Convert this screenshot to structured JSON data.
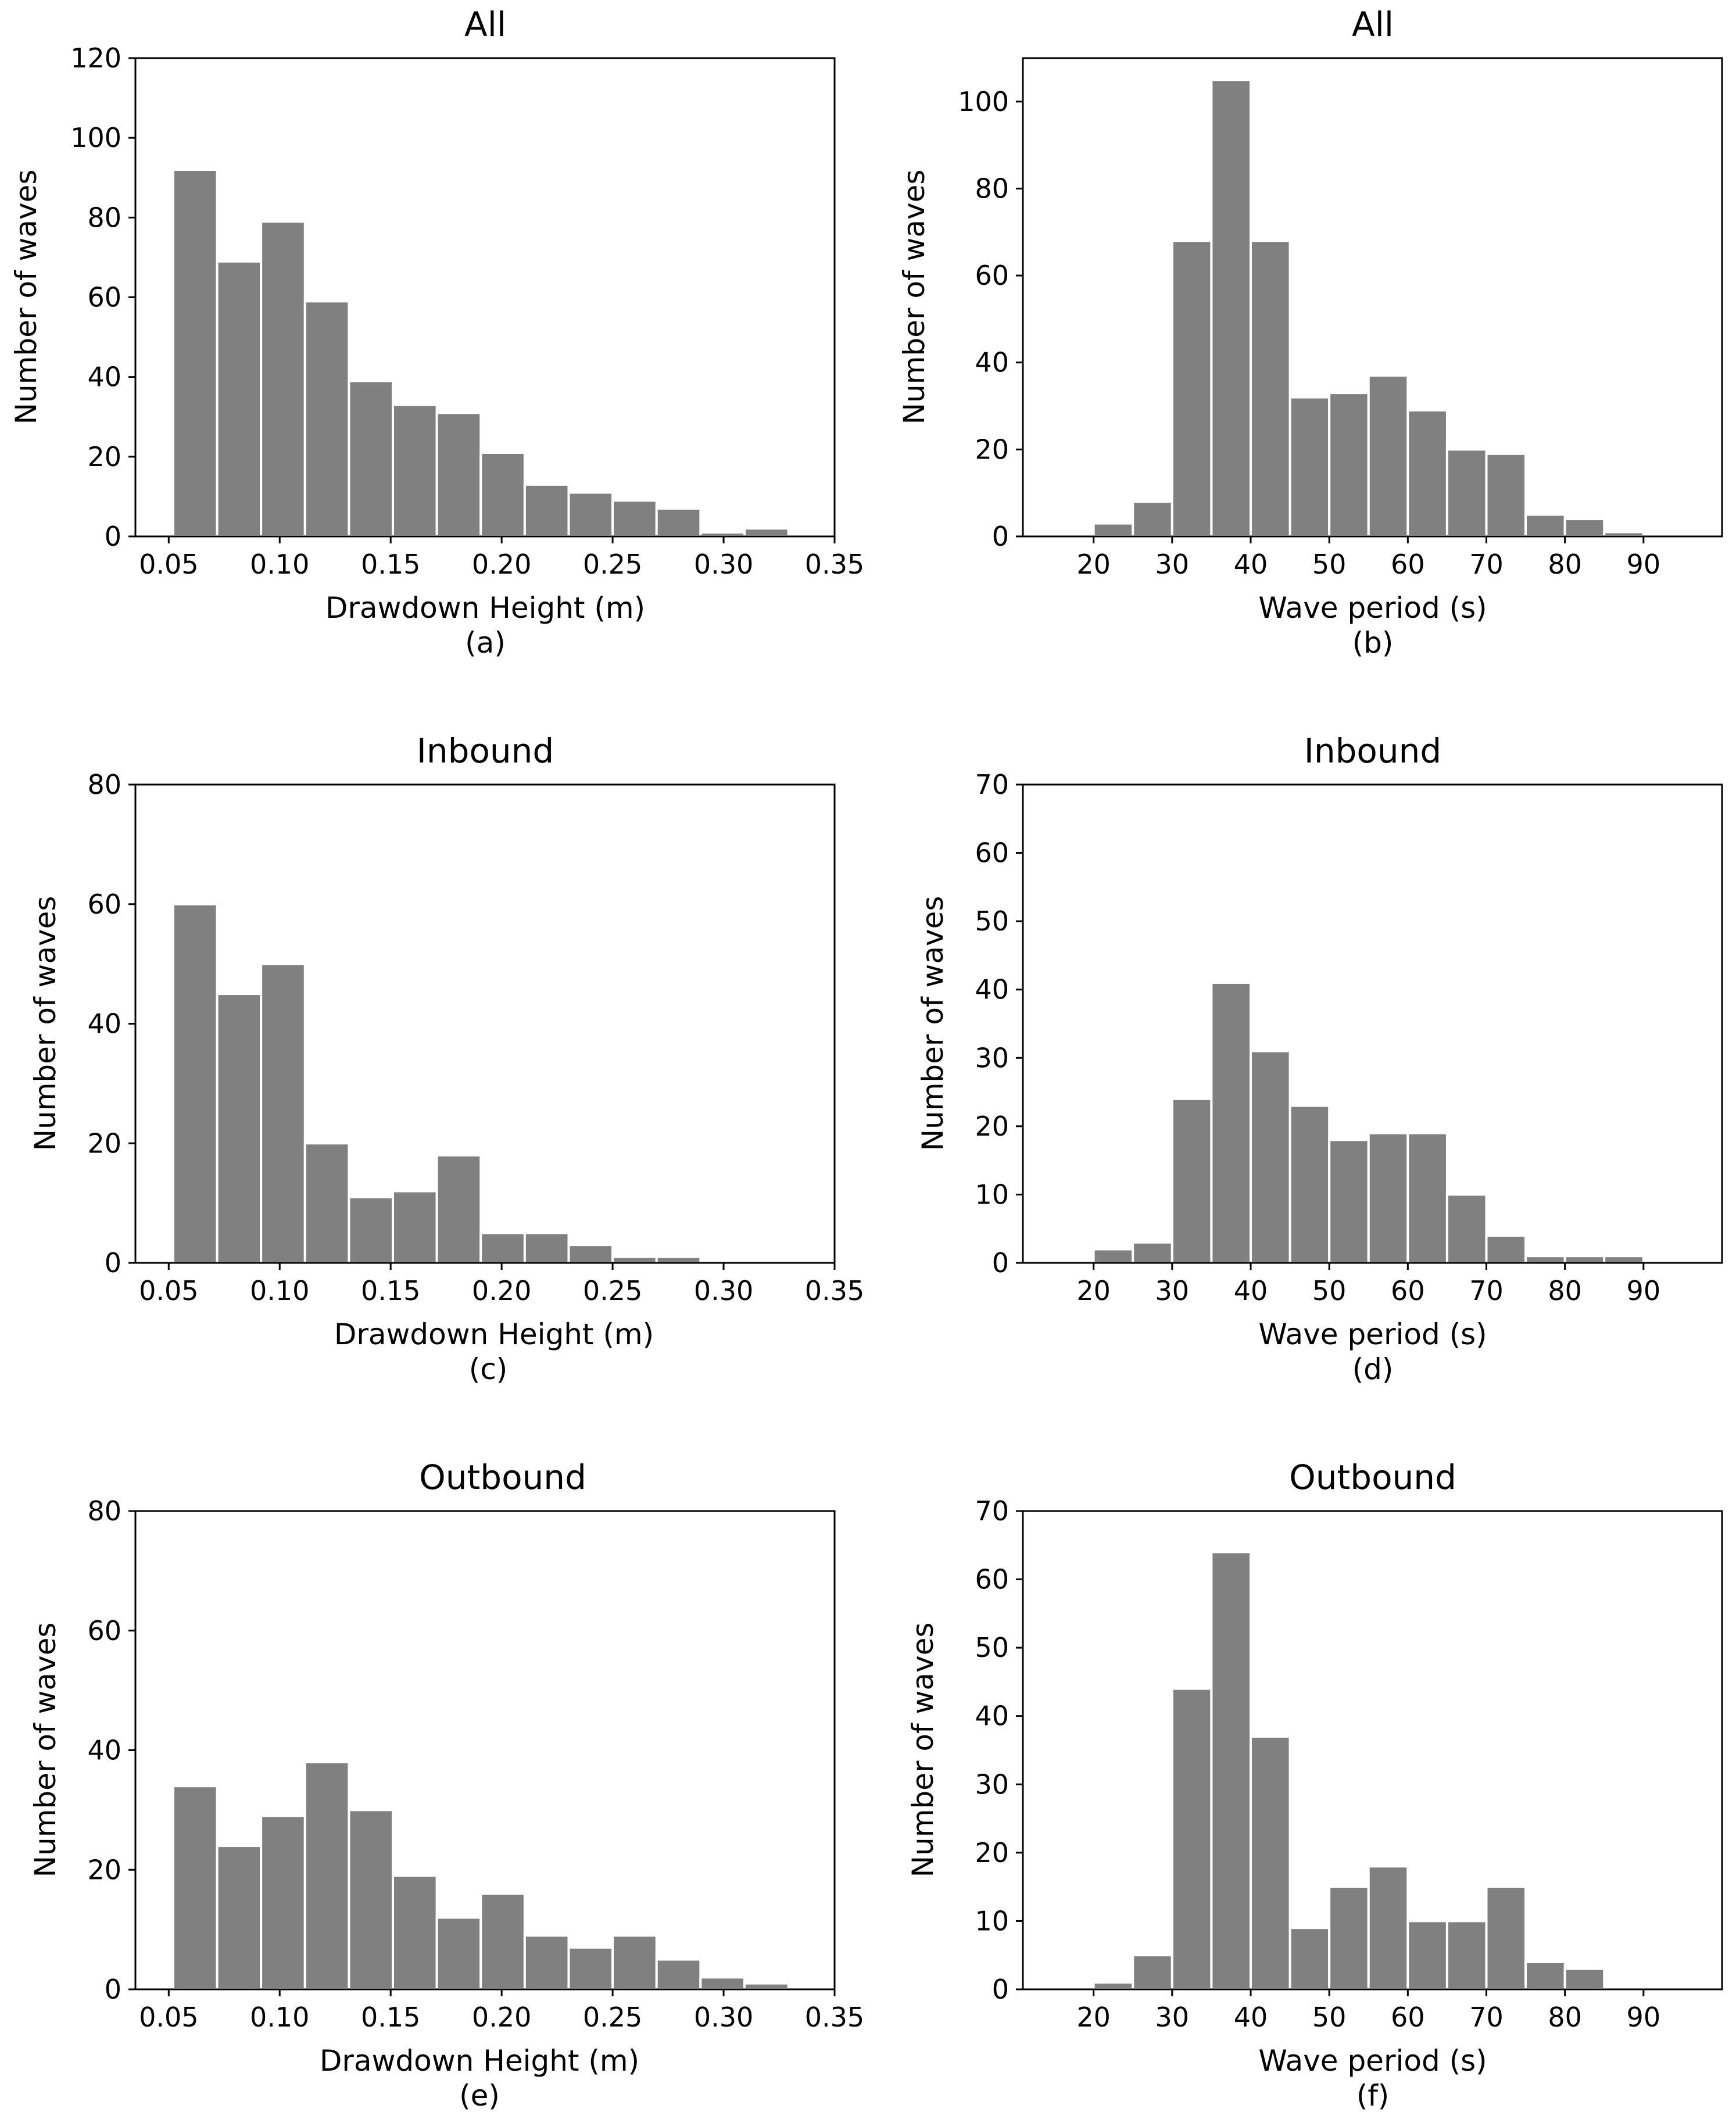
{
  "colors": {
    "bar": "#808080",
    "bar_edge": "#ffffff",
    "axes": "#000000",
    "background": "#ffffff"
  },
  "chart_data": [
    {
      "id": "a",
      "type": "bar",
      "panel_label": "(a)",
      "title": "All",
      "xlabel": "Drawdown Height (m)",
      "ylabel": "Number of waves",
      "xlim": [
        0.035,
        0.35
      ],
      "ylim": [
        0,
        120
      ],
      "xticks": [
        0.05,
        0.1,
        0.15,
        0.2,
        0.25,
        0.3,
        0.35
      ],
      "xtick_labels": [
        "0.05",
        "0.10",
        "0.15",
        "0.20",
        "0.25",
        "0.30",
        "0.35"
      ],
      "yticks": [
        0,
        20,
        40,
        60,
        80,
        100,
        120
      ],
      "ytick_labels": [
        "0",
        "20",
        "40",
        "60",
        "80",
        "100",
        "120"
      ],
      "bin_edges": [
        0.052,
        0.0718,
        0.0916,
        0.1114,
        0.1312,
        0.151,
        0.1708,
        0.1906,
        0.2104,
        0.2302,
        0.25,
        0.2698,
        0.2896,
        0.3094,
        0.3292
      ],
      "values": [
        92,
        69,
        79,
        59,
        39,
        33,
        31,
        21,
        13,
        11,
        9,
        7,
        1,
        2
      ]
    },
    {
      "id": "b",
      "type": "bar",
      "panel_label": "(b)",
      "title": "All",
      "xlabel": "Wave period (s)",
      "ylabel": "Number of waves",
      "xlim": [
        11,
        100
      ],
      "ylim": [
        0,
        110
      ],
      "xticks": [
        20,
        30,
        40,
        50,
        60,
        70,
        80,
        90
      ],
      "xtick_labels": [
        "20",
        "30",
        "40",
        "50",
        "60",
        "70",
        "80",
        "90"
      ],
      "yticks": [
        0,
        20,
        40,
        60,
        80,
        100
      ],
      "ytick_labels": [
        "0",
        "20",
        "40",
        "60",
        "80",
        "100"
      ],
      "bin_edges": [
        15,
        20,
        25,
        30,
        35,
        40,
        45,
        50,
        55,
        60,
        65,
        70,
        75,
        80,
        85,
        90,
        95
      ],
      "values": [
        0,
        3,
        8,
        68,
        105,
        68,
        32,
        33,
        37,
        29,
        20,
        19,
        5,
        4,
        1,
        0
      ]
    },
    {
      "id": "c",
      "type": "bar",
      "panel_label": "(c)",
      "title": "Inbound",
      "xlabel": "Drawdown Height (m)",
      "ylabel": "Number of waves",
      "xlim": [
        0.035,
        0.35
      ],
      "ylim": [
        0,
        80
      ],
      "xticks": [
        0.05,
        0.1,
        0.15,
        0.2,
        0.25,
        0.3,
        0.35
      ],
      "xtick_labels": [
        "0.05",
        "0.10",
        "0.15",
        "0.20",
        "0.25",
        "0.30",
        "0.35"
      ],
      "yticks": [
        0,
        20,
        40,
        60,
        80
      ],
      "ytick_labels": [
        "0",
        "20",
        "40",
        "60",
        "80"
      ],
      "bin_edges": [
        0.052,
        0.0718,
        0.0916,
        0.1114,
        0.1312,
        0.151,
        0.1708,
        0.1906,
        0.2104,
        0.2302,
        0.25,
        0.2698,
        0.2896,
        0.3094,
        0.3292
      ],
      "values": [
        60,
        45,
        50,
        20,
        11,
        12,
        18,
        5,
        5,
        3,
        1,
        1,
        0,
        0
      ]
    },
    {
      "id": "d",
      "type": "bar",
      "panel_label": "(d)",
      "title": "Inbound",
      "xlabel": "Wave period (s)",
      "ylabel": "Number of waves",
      "xlim": [
        11,
        100
      ],
      "ylim": [
        0,
        70
      ],
      "xticks": [
        20,
        30,
        40,
        50,
        60,
        70,
        80,
        90
      ],
      "xtick_labels": [
        "20",
        "30",
        "40",
        "50",
        "60",
        "70",
        "80",
        "90"
      ],
      "yticks": [
        0,
        10,
        20,
        30,
        40,
        50,
        60,
        70
      ],
      "ytick_labels": [
        "0",
        "10",
        "20",
        "30",
        "40",
        "50",
        "60",
        "70"
      ],
      "bin_edges": [
        15,
        20,
        25,
        30,
        35,
        40,
        45,
        50,
        55,
        60,
        65,
        70,
        75,
        80,
        85,
        90,
        95
      ],
      "values": [
        0,
        2,
        3,
        24,
        41,
        31,
        23,
        18,
        19,
        19,
        10,
        4,
        1,
        1,
        1,
        0
      ]
    },
    {
      "id": "e",
      "type": "bar",
      "panel_label": "(e)",
      "title": "Outbound",
      "xlabel": "Drawdown Height (m)",
      "ylabel": "Number of waves",
      "xlim": [
        0.035,
        0.35
      ],
      "ylim": [
        0,
        80
      ],
      "xticks": [
        0.05,
        0.1,
        0.15,
        0.2,
        0.25,
        0.3,
        0.35
      ],
      "xtick_labels": [
        "0.05",
        "0.10",
        "0.15",
        "0.20",
        "0.25",
        "0.30",
        "0.35"
      ],
      "yticks": [
        0,
        20,
        40,
        60,
        80
      ],
      "ytick_labels": [
        "0",
        "20",
        "40",
        "60",
        "80"
      ],
      "bin_edges": [
        0.052,
        0.0718,
        0.0916,
        0.1114,
        0.1312,
        0.151,
        0.1708,
        0.1906,
        0.2104,
        0.2302,
        0.25,
        0.2698,
        0.2896,
        0.3094,
        0.3292
      ],
      "values": [
        34,
        24,
        29,
        38,
        30,
        19,
        12,
        16,
        9,
        7,
        9,
        5,
        2,
        1
      ]
    },
    {
      "id": "f",
      "type": "bar",
      "panel_label": "(f)",
      "title": "Outbound",
      "xlabel": "Wave period (s)",
      "ylabel": "Number of waves",
      "xlim": [
        11,
        100
      ],
      "ylim": [
        0,
        70
      ],
      "xticks": [
        20,
        30,
        40,
        50,
        60,
        70,
        80,
        90
      ],
      "xtick_labels": [
        "20",
        "30",
        "40",
        "50",
        "60",
        "70",
        "80",
        "90"
      ],
      "yticks": [
        0,
        10,
        20,
        30,
        40,
        50,
        60,
        70
      ],
      "ytick_labels": [
        "0",
        "10",
        "20",
        "30",
        "40",
        "50",
        "60",
        "70"
      ],
      "bin_edges": [
        15,
        20,
        25,
        30,
        35,
        40,
        45,
        50,
        55,
        60,
        65,
        70,
        75,
        80,
        85,
        90,
        95
      ],
      "values": [
        0,
        1,
        5,
        44,
        64,
        37,
        9,
        15,
        18,
        10,
        10,
        15,
        4,
        3,
        0,
        0
      ]
    }
  ]
}
